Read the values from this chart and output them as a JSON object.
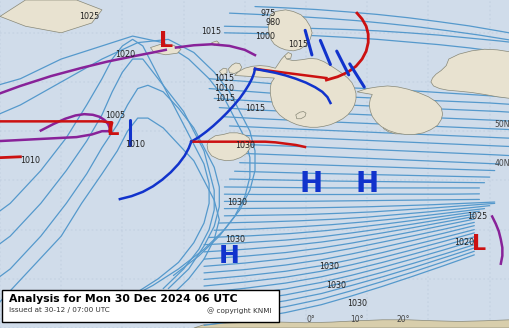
{
  "title_line1": "Analysis for Mon 30 Dec 2024 06 UTC",
  "title_line2": "Issued at 30-12 / 07:00 UTC",
  "copyright": "@ copyright KNMI",
  "bg_ocean": "#d0dcea",
  "bg_land": "#e8e2d0",
  "isobar_color": "#5599cc",
  "front_cold": "#1133cc",
  "front_warm": "#cc1111",
  "front_occluded": "#882299",
  "H_color": "#1133cc",
  "L_color": "#cc1111",
  "label_box_bg": "#ffffff",
  "label_box_edge": "#000000"
}
